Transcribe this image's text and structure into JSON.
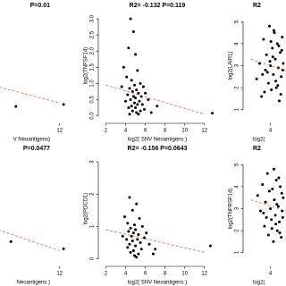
{
  "chart_data": [
    {
      "type": "scatter",
      "title": "P=0.01",
      "xlabel": "V Neoantigens)",
      "xlim": [
        1.5,
        13.2
      ],
      "ylim": [
        -0.15,
        3.25
      ],
      "xticks": [
        12
      ],
      "yticks": [],
      "x": [
        7.6,
        12.4
      ],
      "values": [
        0.29,
        0.35
      ],
      "color": "#000000",
      "trend": {
        "color": "#e06a5a",
        "x": [
          2,
          12
        ],
        "y": [
          1.2,
          0.4
        ]
      }
    },
    {
      "type": "scatter",
      "title": "R2= -0.132 P=0.119",
      "xlabel": "log2( SNV Neoantigens )",
      "ylabel": "log2(TNFSF14)",
      "xlim": [
        1.5,
        13.2
      ],
      "ylim": [
        -0.15,
        3.25
      ],
      "xticks": [
        2,
        4,
        6,
        8,
        10,
        12
      ],
      "yticks": [
        {
          "value": 0,
          "label": "0.0"
        },
        0.5,
        {
          "value": 1,
          "label": "1.0"
        },
        1.5,
        {
          "value": 2,
          "label": "2.0"
        },
        2.5,
        {
          "value": 3,
          "label": "3.0"
        }
      ],
      "x": [
        4.5,
        4.8,
        4.3,
        5.0,
        3.8,
        5.2,
        4.1,
        4.6,
        5.5,
        4.9,
        5.8,
        4.4,
        5.1,
        4.7,
        6.0,
        5.3,
        4.2,
        4.8,
        5.6,
        5.0,
        4.5,
        6.3,
        4.0,
        5.4,
        4.9,
        5.2,
        5.7,
        4.6,
        5.0,
        4.3,
        5.9,
        4.7,
        5.1,
        6.6,
        5.3,
        4.4,
        12.8,
        3.6,
        7.2,
        5.5
      ],
      "values": [
        3.0,
        2.6,
        2.1,
        1.9,
        1.5,
        1.4,
        1.2,
        1.1,
        1.0,
        0.95,
        0.9,
        0.85,
        0.8,
        0.75,
        0.7,
        0.7,
        0.65,
        0.6,
        0.6,
        0.55,
        0.5,
        0.5,
        0.45,
        0.45,
        0.4,
        0.35,
        0.35,
        0.3,
        0.25,
        0.25,
        0.2,
        0.15,
        0.1,
        0.1,
        0.05,
        0.05,
        0.08,
        0.9,
        0.3,
        0.15
      ],
      "color": "#000000",
      "trend": {
        "color": "#e06a5a",
        "x": [
          2,
          12
        ],
        "y": [
          0.95,
          0.05
        ]
      }
    },
    {
      "type": "scatter",
      "title": "R2",
      "xlabel": "log2(",
      "ylabel": "log2(LAIR1)",
      "xlim": [
        1.5,
        13.2
      ],
      "ylim": [
        0.5,
        5.5
      ],
      "xticks": [
        4
      ],
      "yticks": [
        1,
        2,
        3,
        4,
        5
      ],
      "x": [
        2.6,
        2.9,
        3.1,
        3.3,
        3.5,
        3.6,
        3.8,
        3.9,
        4.0,
        4.1,
        4.2,
        4.3,
        4.4,
        4.5,
        4.6,
        4.7,
        4.8,
        4.9,
        5.0,
        5.1,
        5.2,
        5.3,
        3.4,
        3.7,
        4.05,
        4.25,
        4.55,
        4.85,
        5.05,
        5.25,
        3.95,
        4.35,
        4.75,
        5.15,
        3.2
      ],
      "values": [
        2.4,
        3.1,
        1.6,
        4.2,
        2.8,
        3.5,
        2.2,
        4.8,
        3.0,
        1.9,
        3.8,
        2.6,
        4.5,
        3.3,
        2.0,
        4.0,
        2.9,
        1.4,
        3.6,
        2.5,
        4.3,
        3.1,
        1.8,
        2.7,
        4.1,
        3.4,
        2.3,
        3.9,
        1.7,
        2.8,
        3.2,
        4.6,
        2.1,
        3.7,
        2.6
      ],
      "color": "#000000",
      "trend": {
        "color": "#e06a5a",
        "x": [
          2,
          12
        ],
        "y": [
          3.3,
          1.8
        ]
      }
    },
    {
      "type": "scatter",
      "title": "P=0.0477",
      "xlabel": "Neoantigens )",
      "xlim": [
        1.5,
        13.2
      ],
      "ylim": [
        -0.15,
        3.25
      ],
      "xticks": [
        12
      ],
      "yticks": [],
      "x": [
        7.1,
        12.4
      ],
      "values": [
        0.53,
        0.31
      ],
      "color": "#000000",
      "trend": {
        "color": "#e06a5a",
        "x": [
          2,
          12
        ],
        "y": [
          1.3,
          0.25
        ]
      }
    },
    {
      "type": "scatter",
      "title": "R2= -0.156 P=0.0643",
      "xlabel": "log2( SNV Neoantigens )",
      "ylabel": "log2(PDCD1)",
      "xlim": [
        1.5,
        13.2
      ],
      "ylim": [
        -0.15,
        3.25
      ],
      "xticks": [
        2,
        4,
        6,
        8,
        10,
        12
      ],
      "yticks": [
        0,
        1,
        2,
        3
      ],
      "x": [
        4.4,
        5.1,
        4.7,
        3.9,
        5.4,
        4.2,
        4.9,
        5.7,
        4.5,
        5.0,
        4.3,
        6.1,
        4.8,
        5.3,
        4.6,
        5.9,
        4.1,
        5.2,
        4.7,
        5.5,
        4.4,
        6.4,
        5.0,
        4.2,
        5.6,
        4.8,
        4.5,
        5.3,
        6.8,
        4.9,
        12.6,
        3.7,
        7.0,
        5.1
      ],
      "values": [
        1.9,
        1.7,
        1.5,
        1.3,
        1.25,
        1.1,
        1.05,
        1.0,
        0.95,
        0.9,
        0.85,
        0.8,
        0.8,
        0.75,
        0.7,
        0.65,
        0.6,
        0.6,
        0.55,
        0.5,
        0.45,
        0.45,
        0.4,
        0.35,
        0.3,
        0.25,
        0.2,
        0.15,
        0.15,
        0.1,
        0.4,
        0.7,
        0.3,
        0.05
      ],
      "color": "#000000",
      "trend": {
        "color": "#e06a5a",
        "x": [
          2,
          12
        ],
        "y": [
          0.9,
          0.2
        ]
      }
    },
    {
      "type": "scatter",
      "title": "R2",
      "xlabel": "log2(",
      "ylabel": "log2(TNFRSF14)",
      "xlim": [
        1.5,
        13.2
      ],
      "ylim": [
        0.5,
        5.5
      ],
      "xticks": [
        4
      ],
      "yticks": [
        1,
        2,
        3,
        4,
        5
      ],
      "x": [
        2.7,
        3.0,
        3.2,
        3.4,
        3.5,
        3.7,
        3.8,
        4.0,
        4.1,
        4.2,
        4.3,
        4.4,
        4.5,
        4.6,
        4.7,
        4.8,
        4.9,
        5.0,
        5.1,
        5.2,
        5.3,
        3.6,
        3.9,
        4.15,
        4.35,
        4.65,
        4.95,
        5.15,
        3.3,
        4.55,
        4.85,
        5.25
      ],
      "values": [
        3.6,
        2.9,
        4.1,
        2.2,
        3.3,
        4.6,
        1.8,
        3.0,
        2.5,
        3.9,
        1.5,
        3.4,
        2.7,
        4.3,
        2.0,
        3.1,
        2.4,
        4.0,
        1.7,
        2.9,
        3.5,
        2.6,
        3.8,
        2.1,
        4.8,
        3.2,
        1.9,
        3.7,
        2.8,
        2.3,
        4.4,
        2.6
      ],
      "color": "#000000",
      "trend": {
        "color": "#e06a5a",
        "x": [
          2,
          12
        ],
        "y": [
          3.4,
          2.0
        ]
      }
    }
  ]
}
